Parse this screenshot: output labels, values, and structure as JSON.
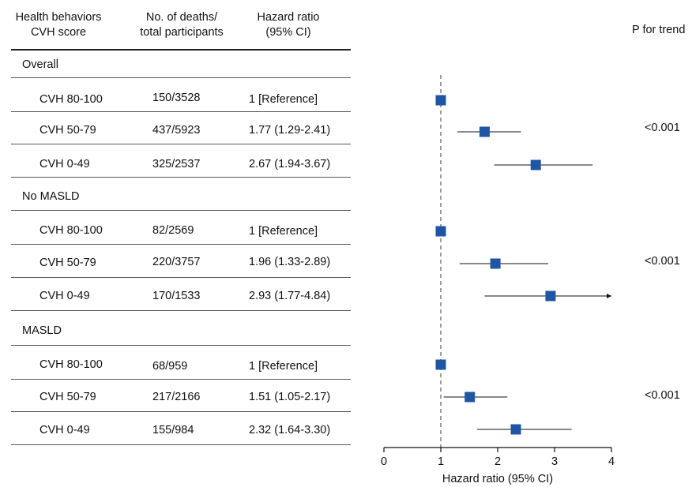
{
  "headers": {
    "col1": [
      "Health behaviors",
      "CVH score"
    ],
    "col2": [
      "No. of deaths/",
      "total participants"
    ],
    "col3": [
      "Hazard ratio",
      "(95% CI)"
    ],
    "p_trend": "P for trend"
  },
  "groups": [
    {
      "label": "Overall",
      "p_trend": "<0.001",
      "rows": [
        {
          "score": "CVH 80-100",
          "deaths": "150/3528",
          "hr_text": "1 [Reference]"
        },
        {
          "score": "CVH 50-79",
          "deaths": "437/5923",
          "hr_text": "1.77 (1.29-2.41)"
        },
        {
          "score": "CVH 0-49",
          "deaths": "325/2537",
          "hr_text": "2.67 (1.94-3.67)"
        }
      ]
    },
    {
      "label": "No MASLD",
      "p_trend": "<0.001",
      "rows": [
        {
          "score": "CVH 80-100",
          "deaths": "82/2569",
          "hr_text": "1 [Reference]"
        },
        {
          "score": "CVH 50-79",
          "deaths": "220/3757",
          "hr_text": "1.96 (1.33-2.89)"
        },
        {
          "score": "CVH 0-49",
          "deaths": "170/1533",
          "hr_text": "2.93 (1.77-4.84)"
        }
      ]
    },
    {
      "label": "MASLD",
      "p_trend": "<0.001",
      "rows": [
        {
          "score": "CVH 80-100",
          "deaths": "68/959",
          "hr_text": "1 [Reference]"
        },
        {
          "score": "CVH 50-79",
          "deaths": "217/2166",
          "hr_text": "1.51 (1.05-2.17)"
        },
        {
          "score": "CVH 0-49",
          "deaths": "155/984",
          "hr_text": "2.32 (1.64-3.30)"
        }
      ]
    }
  ],
  "chart_data": {
    "type": "scatter",
    "subtype": "forest-plot",
    "xlabel": "Hazard ratio (95% CI)",
    "xlim": [
      0,
      4
    ],
    "xticks": [
      0,
      1,
      2,
      3,
      4
    ],
    "reference_line": 1,
    "marker_color": "#1f55a5",
    "series": [
      {
        "group": "Overall",
        "label": "CVH 80-100",
        "hr": 1,
        "lo": null,
        "hi": null
      },
      {
        "group": "Overall",
        "label": "CVH 50-79",
        "hr": 1.77,
        "lo": 1.29,
        "hi": 2.41
      },
      {
        "group": "Overall",
        "label": "CVH 0-49",
        "hr": 2.67,
        "lo": 1.94,
        "hi": 3.67
      },
      {
        "group": "No MASLD",
        "label": "CVH 80-100",
        "hr": 1,
        "lo": null,
        "hi": null
      },
      {
        "group": "No MASLD",
        "label": "CVH 50-79",
        "hr": 1.96,
        "lo": 1.33,
        "hi": 2.89
      },
      {
        "group": "No MASLD",
        "label": "CVH 0-49",
        "hr": 2.93,
        "lo": 1.77,
        "hi": 4.84
      },
      {
        "group": "MASLD",
        "label": "CVH 80-100",
        "hr": 1,
        "lo": null,
        "hi": null
      },
      {
        "group": "MASLD",
        "label": "CVH 50-79",
        "hr": 1.51,
        "lo": 1.05,
        "hi": 2.17
      },
      {
        "group": "MASLD",
        "label": "CVH 0-49",
        "hr": 2.32,
        "lo": 1.64,
        "hi": 3.3
      }
    ]
  }
}
